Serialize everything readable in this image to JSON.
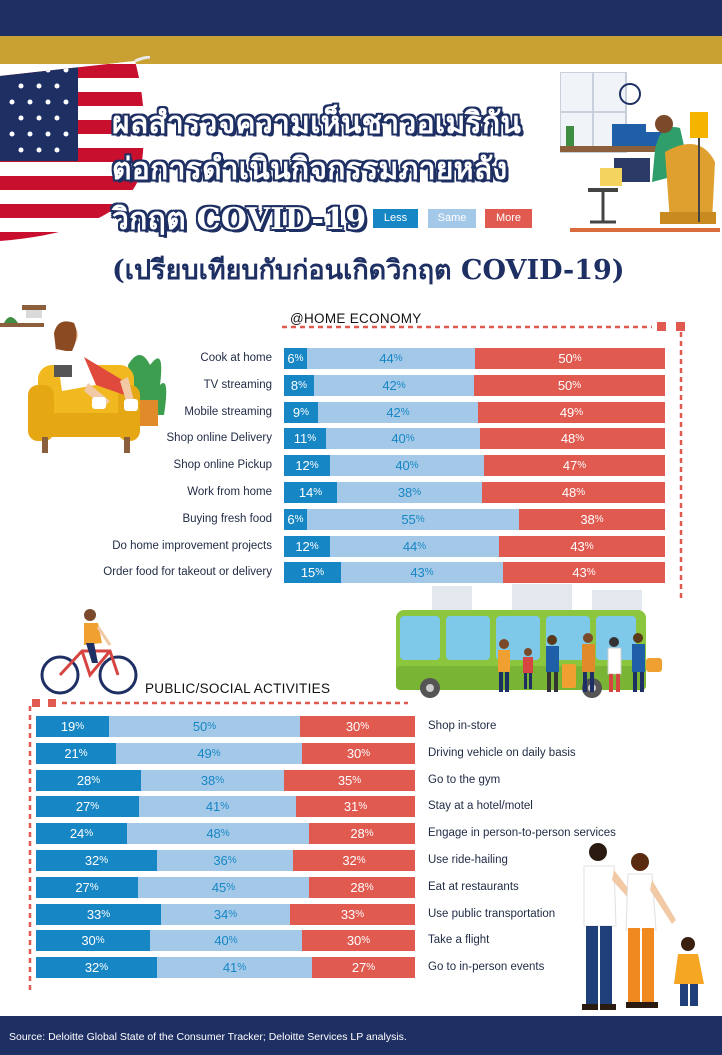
{
  "title": {
    "line1": "ผลสำรวจความเห็นชาวอเมริกัน",
    "line2": "ต่อการดำเนินกิจกรรมภายหลัง",
    "line3": "วิกฤต COVID-19",
    "subtitle": "(เปรียบเทียบกับก่อนเกิดวิกฤต COVID-19)"
  },
  "legend": {
    "less": "Less",
    "same": "Same",
    "more": "More"
  },
  "colors": {
    "less": "#1686c5",
    "same": "#a4c9e8",
    "more": "#e05a50",
    "navy": "#1e2f63",
    "gold": "#c9a032"
  },
  "footer": {
    "source": "Source: Deloitte Global State of the Consumer Tracker; Deloitte Services LP analysis."
  },
  "chart_data": [
    {
      "type": "bar",
      "orientation": "horizontal",
      "stacked": true,
      "title": "@HOME ECONOMY",
      "unit": "%",
      "categories": [
        "Cook at home",
        "TV streaming",
        "Mobile streaming",
        "Shop online Delivery",
        "Shop online Pickup",
        "Work from home",
        "Buying fresh food",
        "Do home improvement projects",
        "Order food for takeout or delivery"
      ],
      "series": [
        {
          "name": "Less",
          "values": [
            6,
            8,
            9,
            11,
            12,
            14,
            6,
            12,
            15
          ]
        },
        {
          "name": "Same",
          "values": [
            44,
            42,
            42,
            40,
            40,
            38,
            55,
            44,
            43
          ]
        },
        {
          "name": "More",
          "values": [
            50,
            50,
            49,
            48,
            47,
            48,
            38,
            43,
            43
          ]
        }
      ],
      "xlim": [
        0,
        100
      ]
    },
    {
      "type": "bar",
      "orientation": "horizontal",
      "stacked": true,
      "title": "PUBLIC/SOCIAL ACTIVITIES",
      "unit": "%",
      "categories": [
        "Shop in-store",
        "Driving vehicle on daily basis",
        "Go to the gym",
        "Stay at a hotel/motel",
        "Engage in person-to-person services",
        "Use ride-hailing",
        "Eat at restaurants",
        "Use public transportation",
        "Take a flight",
        "Go to in-person events"
      ],
      "series": [
        {
          "name": "Less",
          "values": [
            19,
            21,
            28,
            27,
            24,
            32,
            27,
            33,
            30,
            32
          ]
        },
        {
          "name": "Same",
          "values": [
            50,
            49,
            38,
            41,
            48,
            36,
            45,
            34,
            40,
            41
          ]
        },
        {
          "name": "More",
          "values": [
            30,
            30,
            35,
            31,
            28,
            32,
            28,
            33,
            30,
            27
          ]
        }
      ],
      "xlim": [
        0,
        100
      ]
    }
  ]
}
